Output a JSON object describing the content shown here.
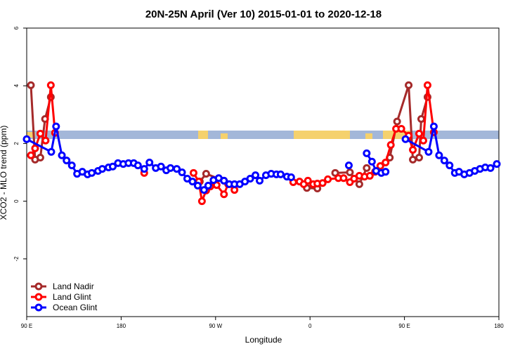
{
  "chart_data": {
    "type": "line",
    "title": "20N-25N April (Ver 10)   2015-01-01 to 2020-12-18",
    "x_label": "Longitude",
    "y_label": "XCO2 - MLO trend (ppm)",
    "xlim": [
      90,
      540
    ],
    "xticks": [
      {
        "value": 90,
        "label": "90 E"
      },
      {
        "value": 180,
        "label": "180"
      },
      {
        "value": 270,
        "label": "90 W"
      },
      {
        "value": 360,
        "label": "0"
      },
      {
        "value": 450,
        "label": "90 E"
      },
      {
        "value": 540,
        "label": "180"
      }
    ],
    "ylim": [
      -4,
      6
    ],
    "yticks": [
      -2,
      0,
      2,
      4,
      6
    ],
    "legend": "bottom-left",
    "series": [
      {
        "name": "Land Nadir",
        "color": "#a52a2a",
        "x": [
          94,
          98,
          103,
          107.5,
          113,
          null,
          255,
          261,
          278,
          null,
          357,
          367,
          null,
          384,
          398,
          407,
          414,
          null,
          436,
          443,
          454,
          458,
          464,
          466,
          472
        ],
        "values": [
          4.02,
          1.44,
          1.51,
          2.85,
          3.61,
          null,
          0.68,
          0.95,
          0.71,
          null,
          0.46,
          0.44,
          null,
          0.98,
          1.0,
          0.59,
          1.15,
          null,
          1.51,
          2.76,
          4.02,
          1.44,
          1.51,
          2.85,
          3.61
        ]
      },
      {
        "name": "Land Glint",
        "color": "#ff0000",
        "x": [
          94,
          98,
          103,
          108,
          113,
          117,
          null,
          202,
          null,
          249,
          254,
          257,
          261,
          265,
          271,
          278,
          282,
          288,
          null,
          344,
          350,
          354,
          358,
          363,
          367,
          372,
          377,
          387,
          392,
          398,
          402,
          407,
          412,
          417,
          422,
          427,
          432,
          437,
          442,
          447,
          454,
          458,
          464,
          468,
          472,
          478
        ],
        "values": [
          1.59,
          1.83,
          2.34,
          2.1,
          4.02,
          2.37,
          null,
          0.98,
          null,
          0.98,
          0.68,
          0.0,
          0.37,
          0.51,
          0.56,
          0.24,
          0.59,
          0.39,
          null,
          0.66,
          0.68,
          0.59,
          0.71,
          0.59,
          0.61,
          0.63,
          0.76,
          0.8,
          0.8,
          0.66,
          0.78,
          0.88,
          0.85,
          0.88,
          1.02,
          1.22,
          1.34,
          1.95,
          2.51,
          2.51,
          2.27,
          1.78,
          2.34,
          2.1,
          4.02,
          2.39
        ]
      },
      {
        "name": "Ocean Glint",
        "color": "#0000ff",
        "x": [
          90,
          113.4,
          118,
          123.5,
          128,
          133,
          138,
          143,
          148,
          152,
          158,
          162,
          168,
          172,
          177,
          182,
          187,
          192,
          196,
          202,
          207,
          213,
          218,
          223,
          227,
          233,
          238,
          243,
          248,
          253,
          259,
          263,
          268,
          273,
          278,
          283,
          288,
          293,
          298,
          303,
          308,
          312,
          318,
          323,
          328,
          332,
          338,
          342,
          null,
          397,
          null,
          414,
          419,
          423,
          428,
          432,
          null,
          451,
          473,
          478,
          483,
          488,
          493,
          498,
          502,
          507,
          512,
          517,
          522,
          527,
          532,
          538
        ],
        "values": [
          2.15,
          1.71,
          2.59,
          1.59,
          1.41,
          1.24,
          0.95,
          1.02,
          0.93,
          0.98,
          1.05,
          1.12,
          1.17,
          1.2,
          1.32,
          1.29,
          1.32,
          1.32,
          1.24,
          1.12,
          1.34,
          1.15,
          1.2,
          1.07,
          1.15,
          1.12,
          1.0,
          0.78,
          0.68,
          0.54,
          0.39,
          0.54,
          0.73,
          0.8,
          0.71,
          0.59,
          0.59,
          0.59,
          0.68,
          0.78,
          0.9,
          0.71,
          0.9,
          0.95,
          0.93,
          0.93,
          0.85,
          0.83,
          null,
          1.24,
          null,
          1.66,
          1.37,
          1.05,
          0.98,
          1.02,
          null,
          2.15,
          1.71,
          2.59,
          1.59,
          1.41,
          1.24,
          0.98,
          1.02,
          0.93,
          0.98,
          1.05,
          1.12,
          1.17,
          1.15,
          1.29
        ]
      }
    ]
  }
}
